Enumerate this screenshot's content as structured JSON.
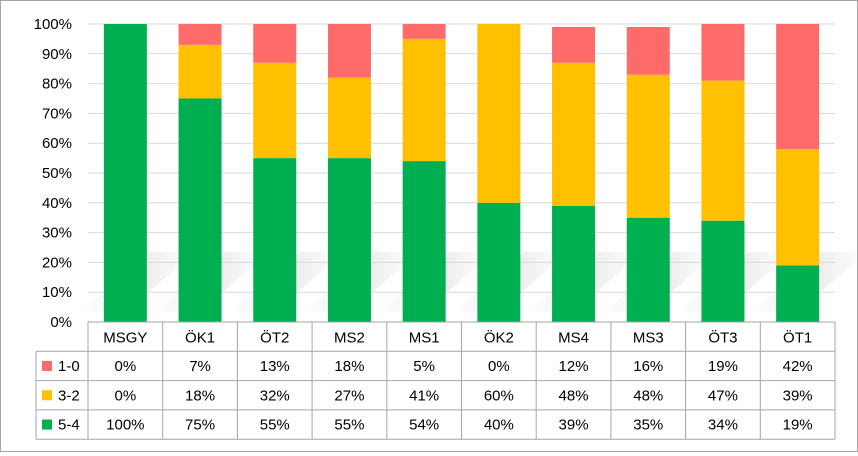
{
  "chart_data": {
    "type": "bar",
    "stacked": true,
    "normalized": true,
    "categories": [
      "MSGY",
      "ÖK1",
      "ÖT2",
      "MS2",
      "MS1",
      "ÖK2",
      "MS4",
      "MS3",
      "ÖT3",
      "ÖT1"
    ],
    "series": [
      {
        "name": "5-4",
        "color": "#00b050",
        "values": [
          100,
          75,
          55,
          55,
          54,
          40,
          39,
          35,
          34,
          19
        ]
      },
      {
        "name": "3-2",
        "color": "#ffc000",
        "values": [
          0,
          18,
          32,
          27,
          41,
          60,
          48,
          48,
          47,
          39
        ]
      },
      {
        "name": "1-0",
        "color": "#ff6b6b",
        "values": [
          0,
          7,
          13,
          18,
          5,
          0,
          12,
          16,
          19,
          42
        ]
      }
    ],
    "ylim": [
      0,
      100
    ],
    "yticks": [
      "0%",
      "10%",
      "20%",
      "30%",
      "40%",
      "50%",
      "60%",
      "70%",
      "80%",
      "90%",
      "100%"
    ],
    "data_table": {
      "row_order": [
        "1-0",
        "3-2",
        "5-4"
      ],
      "rows": [
        {
          "name": "1-0",
          "color": "#ff6b6b",
          "cells": [
            "0%",
            "7%",
            "13%",
            "18%",
            "5%",
            "0%",
            "12%",
            "16%",
            "19%",
            "42%"
          ]
        },
        {
          "name": "3-2",
          "color": "#ffc000",
          "cells": [
            "0%",
            "18%",
            "32%",
            "27%",
            "41%",
            "60%",
            "48%",
            "48%",
            "47%",
            "39%"
          ]
        },
        {
          "name": "5-4",
          "color": "#00b050",
          "cells": [
            "100%",
            "75%",
            "55%",
            "55%",
            "54%",
            "40%",
            "39%",
            "35%",
            "34%",
            "19%"
          ]
        }
      ]
    },
    "grid": true,
    "legend": "data-table-left"
  }
}
